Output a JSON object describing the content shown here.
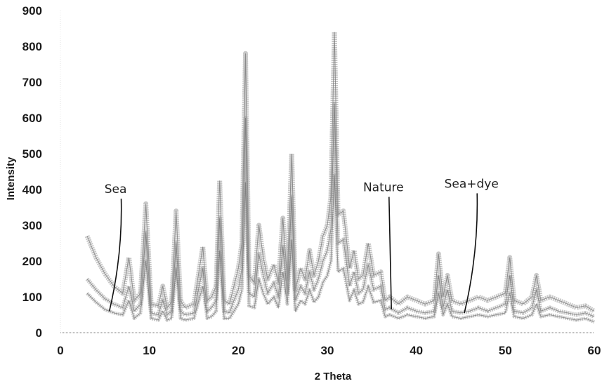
{
  "chart_data": {
    "type": "line",
    "title": "",
    "xlabel": "2 Theta",
    "ylabel": "Intensity",
    "xlim": [
      0,
      60
    ],
    "ylim": [
      0,
      900
    ],
    "xticks": [
      0,
      10,
      20,
      30,
      40,
      50,
      60
    ],
    "yticks": [
      0,
      100,
      200,
      300,
      400,
      500,
      600,
      700,
      800,
      900
    ],
    "xtick_labels": [
      "0",
      "10",
      "20",
      "30",
      "40",
      "50",
      "60"
    ],
    "ytick_labels": [
      "0",
      "100",
      "200",
      "300",
      "400",
      "500",
      "600",
      "700",
      "800",
      "900"
    ],
    "grid": false,
    "legend": "none",
    "series_color": "#9a9a9a",
    "series": [
      {
        "x": [
          3,
          4,
          5,
          6,
          7,
          7.7,
          8.3,
          9,
          9.6,
          10.2,
          11,
          11.5,
          12,
          12.5,
          13,
          13.5,
          14,
          15,
          16,
          16.5,
          17,
          17.5,
          17.9,
          18.4,
          19,
          19.5,
          20,
          20.4,
          20.8,
          21.2,
          21.8,
          22.3,
          22.8,
          23.3,
          24,
          24.5,
          25,
          25.5,
          26,
          26.4,
          27,
          27.5,
          28,
          28.5,
          29,
          29.5,
          30,
          30.4,
          30.8,
          31.2,
          31.8,
          32.5,
          33,
          33.5,
          34,
          34.6,
          35.2,
          36,
          36.5,
          37,
          38,
          39,
          40,
          41,
          42,
          42.5,
          43,
          43.5,
          44,
          45,
          46,
          47,
          48,
          49,
          50,
          50.5,
          51,
          52,
          53,
          53.5,
          54,
          55,
          56,
          57,
          58,
          59,
          60
        ],
        "values": [
          270,
          210,
          165,
          130,
          110,
          210,
          90,
          110,
          360,
          80,
          75,
          130,
          70,
          85,
          340,
          90,
          70,
          80,
          240,
          90,
          100,
          130,
          425,
          90,
          80,
          130,
          180,
          250,
          780,
          160,
          140,
          300,
          210,
          150,
          190,
          140,
          320,
          150,
          500,
          120,
          180,
          150,
          230,
          160,
          200,
          270,
          300,
          380,
          840,
          330,
          340,
          180,
          230,
          150,
          160,
          250,
          160,
          170,
          90,
          100,
          80,
          100,
          90,
          80,
          90,
          220,
          100,
          160,
          90,
          80,
          90,
          100,
          90,
          100,
          110,
          210,
          90,
          80,
          100,
          160,
          90,
          100,
          90,
          80,
          70,
          75,
          60
        ]
      },
      {
        "x": [
          3,
          4,
          5,
          6,
          7,
          7.7,
          8.3,
          9,
          9.6,
          10.2,
          11,
          11.5,
          12,
          12.5,
          13,
          13.5,
          14,
          15,
          16,
          16.5,
          17,
          17.5,
          17.9,
          18.4,
          19,
          19.5,
          20,
          20.4,
          20.8,
          21.2,
          21.8,
          22.3,
          22.8,
          23.3,
          24,
          24.5,
          25,
          25.5,
          26,
          26.4,
          27,
          27.5,
          28,
          28.5,
          29,
          29.5,
          30,
          30.4,
          30.8,
          31.2,
          31.8,
          32.5,
          33,
          33.5,
          34,
          34.6,
          35.2,
          36,
          36.5,
          37,
          38,
          39,
          40,
          41,
          42,
          42.5,
          43,
          43.5,
          44,
          45,
          46,
          47,
          48,
          49,
          50,
          50.5,
          51,
          52,
          53,
          53.5,
          54,
          55,
          56,
          57,
          58,
          59,
          60
        ],
        "values": [
          150,
          120,
          95,
          80,
          70,
          130,
          60,
          80,
          280,
          55,
          50,
          90,
          50,
          60,
          250,
          60,
          50,
          55,
          180,
          60,
          70,
          90,
          320,
          60,
          55,
          90,
          120,
          180,
          600,
          110,
          100,
          220,
          160,
          110,
          140,
          100,
          240,
          110,
          380,
          90,
          130,
          110,
          170,
          120,
          150,
          200,
          230,
          290,
          640,
          250,
          260,
          130,
          170,
          110,
          120,
          190,
          120,
          130,
          65,
          70,
          55,
          70,
          60,
          55,
          60,
          160,
          70,
          120,
          60,
          55,
          60,
          70,
          60,
          70,
          80,
          160,
          60,
          55,
          70,
          120,
          60,
          70,
          60,
          55,
          50,
          55,
          45
        ]
      },
      {
        "x": [
          3,
          4,
          5,
          6,
          7,
          7.7,
          8.3,
          9,
          9.6,
          10.2,
          11,
          11.5,
          12,
          12.5,
          13,
          13.5,
          14,
          15,
          16,
          16.5,
          17,
          17.5,
          17.9,
          18.4,
          19,
          19.5,
          20,
          20.4,
          20.8,
          21.2,
          21.8,
          22.3,
          22.8,
          23.3,
          24,
          24.5,
          25,
          25.5,
          26,
          26.4,
          27,
          27.5,
          28,
          28.5,
          29,
          29.5,
          30,
          30.4,
          30.8,
          31.2,
          31.8,
          32.5,
          33,
          33.5,
          34,
          34.6,
          35.2,
          36,
          36.5,
          37,
          38,
          39,
          40,
          41,
          42,
          42.5,
          43,
          43.5,
          44,
          45,
          46,
          47,
          48,
          49,
          50,
          50.5,
          51,
          52,
          53,
          53.5,
          54,
          55,
          56,
          57,
          58,
          59,
          60
        ],
        "values": [
          110,
          85,
          65,
          55,
          50,
          90,
          40,
          55,
          200,
          40,
          35,
          60,
          35,
          40,
          180,
          40,
          35,
          40,
          130,
          40,
          45,
          60,
          230,
          40,
          40,
          60,
          80,
          120,
          420,
          75,
          70,
          150,
          110,
          80,
          100,
          70,
          170,
          80,
          260,
          60,
          90,
          80,
          120,
          85,
          100,
          140,
          160,
          200,
          440,
          170,
          180,
          90,
          120,
          80,
          85,
          130,
          85,
          90,
          45,
          50,
          40,
          50,
          45,
          40,
          45,
          110,
          50,
          80,
          45,
          40,
          45,
          50,
          45,
          50,
          55,
          110,
          45,
          40,
          50,
          80,
          45,
          50,
          45,
          40,
          35,
          40,
          30
        ]
      }
    ],
    "annotations": [
      {
        "text": "Sea",
        "x": 6.2,
        "y": 390,
        "pointer_to": [
          5.5,
          60
        ]
      },
      {
        "text": "Nature",
        "x": 36.3,
        "y": 395,
        "pointer_to": [
          37.2,
          65
        ]
      },
      {
        "text": "Sea+dye",
        "x": 46.2,
        "y": 405,
        "pointer_to": [
          45.4,
          55
        ]
      }
    ]
  }
}
